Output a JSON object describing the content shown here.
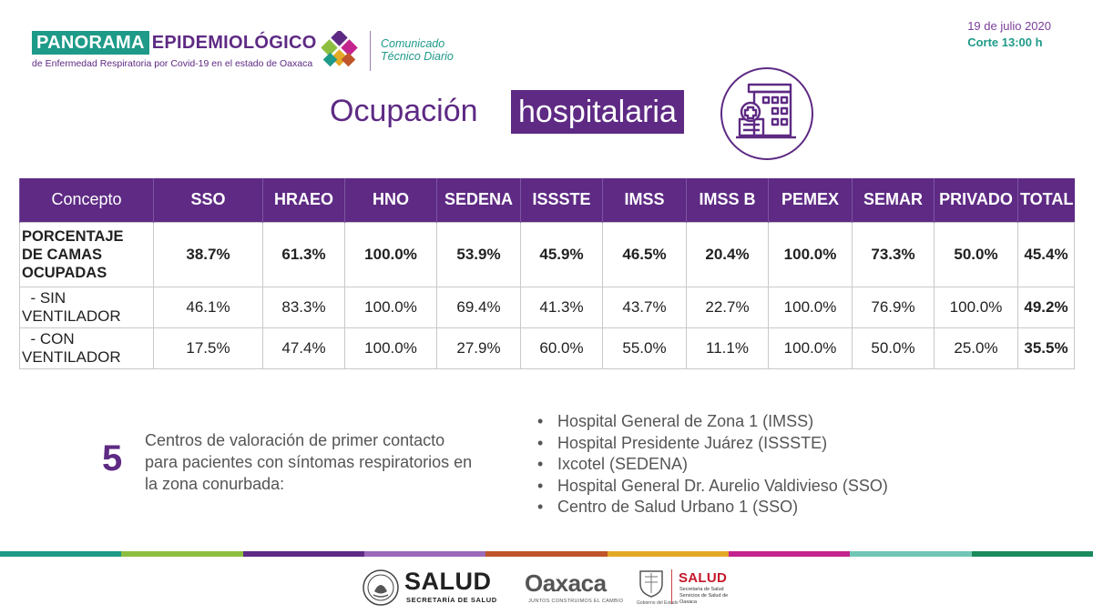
{
  "header": {
    "brand_panorama": "PANORAMA",
    "brand_epidemiologico": "EPIDEMIOLÓGICO",
    "brand_subtitle": "de Enfermedad Respiratoria por Covid-19 en el estado de Oaxaca",
    "comunicado_line1": "Comunicado",
    "comunicado_line2": "Técnico Diario",
    "date": "19 de julio 2020",
    "corte": "Corte 13:00 h"
  },
  "title": {
    "part1": "Ocupación",
    "part2": "hospitalaria"
  },
  "table": {
    "headers": [
      "Concepto",
      "SSO",
      "HRAEO",
      "HNO",
      "SEDENA",
      "ISSSTE",
      "IMSS",
      "IMSS B",
      "PEMEX",
      "SEMAR",
      "PRIVADO",
      "TOTAL"
    ],
    "rows": [
      {
        "concept_lines": [
          "PORCENTAJE",
          "DE CAMAS",
          "OCUPADAS"
        ],
        "values": [
          "38.7%",
          "61.3%",
          "100.0%",
          "53.9%",
          "45.9%",
          "46.5%",
          "20.4%",
          "100.0%",
          "73.3%",
          "50.0%",
          "45.4%"
        ]
      },
      {
        "concept_lines": [
          "  - SIN",
          "VENTILADOR"
        ],
        "values": [
          "46.1%",
          "83.3%",
          "100.0%",
          "69.4%",
          "41.3%",
          "43.7%",
          "22.7%",
          "100.0%",
          "76.9%",
          "100.0%",
          "49.2%"
        ]
      },
      {
        "concept_lines": [
          "  - CON",
          "VENTILADOR"
        ],
        "values": [
          "17.5%",
          "47.4%",
          "100.0%",
          "27.9%",
          "60.0%",
          "55.0%",
          "11.1%",
          "100.0%",
          "50.0%",
          "25.0%",
          "35.5%"
        ]
      }
    ]
  },
  "centros": {
    "count": "5",
    "description": "Centros de valoración de primer contacto para pacientes con síntomas respiratorios en la zona conurbada:",
    "hospitals": [
      "Hospital General de Zona 1 (IMSS)",
      "Hospital Presidente Juárez (ISSSTE)",
      "Ixcotel (SEDENA)",
      "Hospital General Dr. Aurelio Valdivieso (SSO)",
      "Centro de Salud Urbano 1 (SSO)"
    ]
  },
  "footer": {
    "salud": "SALUD",
    "salud_sub": "SECRETARÍA DE SALUD",
    "oaxaca": "Oaxaca",
    "oaxaca_sub": "JUNTOS CONSTRUIMOS EL CAMBIO",
    "gobierno": "Gobierno del Estado",
    "salud2": "SALUD",
    "salud2_sub": "Secretaría de Salud Servicios de Salud de Oaxaca"
  },
  "colors": {
    "purple": "#5e2a84",
    "teal": "#1e9a88",
    "bar": [
      "#1e9a88",
      "#8cbf3f",
      "#5e2a84",
      "#9b6ab8",
      "#c0542a",
      "#e3a825",
      "#c4248e",
      "#6fc6b4",
      "#1a8a5c"
    ]
  },
  "icons": {
    "logo": "panorama-diamond-logo",
    "hospital": "hospital-building-icon",
    "seal": "mexico-seal-icon",
    "shield": "oaxaca-shield-icon"
  }
}
